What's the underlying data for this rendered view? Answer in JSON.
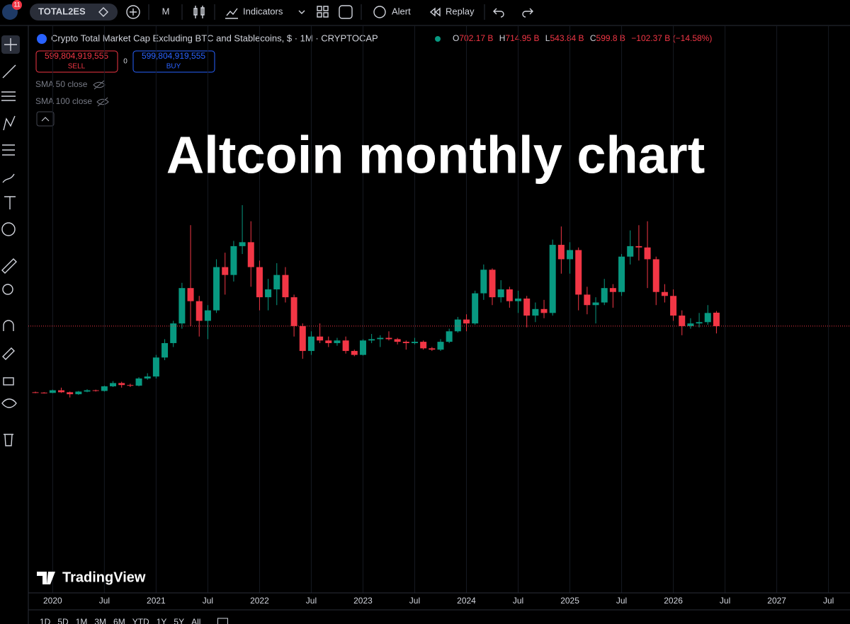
{
  "toolbar": {
    "badge": "11",
    "symbol": "TOTAL2ES",
    "interval": "M",
    "indicators": "Indicators",
    "alert": "Alert",
    "replay": "Replay"
  },
  "legend": {
    "title": "Crypto Total Market Cap Excluding BTC and Stablecoins, $ · 1M · CRYPTOCAP",
    "ohlc": [
      {
        "label": "O",
        "value": "702.17 B"
      },
      {
        "label": "H",
        "value": "714.95 B"
      },
      {
        "label": "L",
        "value": "543.84 B"
      },
      {
        "label": "C",
        "value": "599.8 B"
      }
    ],
    "change": "−102.37 B (−14.58%)",
    "sell_price": "599,804,919,555",
    "sell": "SELL",
    "spread": "0",
    "buy_price": "599,804,919,555",
    "buy": "BUY",
    "studies": [
      "SMA 50 close",
      "SMA 100 close"
    ]
  },
  "overlay_title": "Altcoin monthly chart",
  "watermark": "TradingView",
  "timeframes": [
    "1D",
    "5D",
    "1M",
    "3M",
    "6M",
    "YTD",
    "1Y",
    "5Y",
    "All"
  ],
  "chart_data": {
    "type": "candlestick",
    "x": [
      "2019-11",
      "2019-12",
      "2020-01",
      "2020-02",
      "2020-03",
      "2020-04",
      "2020-05",
      "2020-06",
      "2020-07",
      "2020-08",
      "2020-09",
      "2020-10",
      "2020-11",
      "2020-12",
      "2021-01",
      "2021-02",
      "2021-03",
      "2021-04",
      "2021-05",
      "2021-06",
      "2021-07",
      "2021-08",
      "2021-09",
      "2021-10",
      "2021-11",
      "2021-12",
      "2022-01",
      "2022-02",
      "2022-03",
      "2022-04",
      "2022-05",
      "2022-06",
      "2022-07",
      "2022-08",
      "2022-09",
      "2022-10",
      "2022-11",
      "2022-12",
      "2023-01",
      "2023-02",
      "2023-03",
      "2023-04",
      "2023-05",
      "2023-06",
      "2023-07",
      "2023-08",
      "2023-09",
      "2023-10",
      "2023-11",
      "2023-12",
      "2024-01",
      "2024-02",
      "2024-03",
      "2024-04",
      "2024-05",
      "2024-06",
      "2024-07",
      "2024-08",
      "2024-09",
      "2024-10",
      "2024-11",
      "2024-12",
      "2025-01",
      "2025-02",
      "2025-03",
      "2025-04",
      "2025-05",
      "2025-06",
      "2025-07",
      "2025-08",
      "2025-09",
      "2025-10",
      "2025-11",
      "2025-12",
      "2026-01",
      "2026-02",
      "2026-03",
      "2026-04",
      "2026-05",
      "2026-06"
    ],
    "open": [
      95,
      92,
      90,
      110,
      95,
      80,
      100,
      110,
      105,
      140,
      165,
      150,
      145,
      200,
      215,
      360,
      470,
      620,
      890,
      790,
      640,
      720,
      1050,
      990,
      1210,
      1240,
      1050,
      820,
      880,
      990,
      820,
      600,
      410,
      520,
      490,
      470,
      490,
      410,
      380,
      490,
      500,
      510,
      500,
      480,
      470,
      480,
      430,
      420,
      480,
      560,
      650,
      620,
      850,
      1030,
      820,
      880,
      790,
      810,
      680,
      730,
      700,
      1220,
      1110,
      1180,
      840,
      760,
      780,
      890,
      860,
      1130,
      1210,
      1200,
      1110,
      860,
      830,
      680,
      600,
      620,
      630,
      702.17
    ],
    "high": [
      100,
      96,
      115,
      130,
      100,
      105,
      118,
      115,
      145,
      180,
      175,
      160,
      210,
      240,
      380,
      500,
      640,
      930,
      1370,
      830,
      760,
      1110,
      1160,
      1250,
      1523,
      1400,
      1100,
      960,
      1080,
      1050,
      840,
      620,
      560,
      620,
      520,
      510,
      520,
      420,
      500,
      540,
      530,
      560,
      510,
      490,
      510,
      490,
      440,
      500,
      580,
      670,
      690,
      870,
      1070,
      1040,
      950,
      900,
      870,
      830,
      780,
      800,
      1260,
      1360,
      1240,
      1200,
      900,
      820,
      960,
      920,
      1150,
      1330,
      1370,
      1400,
      1130,
      920,
      880,
      720,
      660,
      700,
      760,
      714.95
    ],
    "low": [
      88,
      85,
      88,
      90,
      55,
      75,
      95,
      100,
      100,
      135,
      130,
      135,
      140,
      190,
      200,
      340,
      440,
      580,
      600,
      520,
      500,
      700,
      840,
      940,
      1150,
      900,
      720,
      720,
      760,
      780,
      520,
      350,
      380,
      470,
      440,
      450,
      390,
      370,
      375,
      470,
      440,
      490,
      460,
      420,
      460,
      420,
      410,
      410,
      470,
      550,
      560,
      610,
      800,
      760,
      780,
      740,
      700,
      590,
      630,
      660,
      680,
      1000,
      1000,
      720,
      690,
      620,
      760,
      740,
      830,
      1070,
      1100,
      890,
      760,
      780,
      640,
      530,
      580,
      590,
      610,
      543.84
    ],
    "close": [
      92,
      90,
      110,
      95,
      80,
      100,
      110,
      105,
      140,
      165,
      150,
      145,
      200,
      215,
      360,
      470,
      620,
      890,
      790,
      640,
      720,
      1050,
      990,
      1210,
      1240,
      1050,
      820,
      880,
      990,
      820,
      600,
      410,
      520,
      490,
      470,
      490,
      410,
      380,
      490,
      500,
      510,
      500,
      480,
      470,
      480,
      430,
      420,
      480,
      560,
      650,
      620,
      850,
      1030,
      820,
      880,
      790,
      810,
      680,
      730,
      700,
      1220,
      1110,
      1180,
      840,
      760,
      780,
      890,
      860,
      1130,
      1210,
      1200,
      1110,
      860,
      830,
      680,
      600,
      620,
      630,
      700,
      599.8
    ],
    "up_color": "#089981",
    "down_color": "#f23645",
    "xticks": [
      {
        "value": "2020-01",
        "label": "2020"
      },
      {
        "value": "2020-07",
        "label": "Jul"
      },
      {
        "value": "2021-01",
        "label": "2021"
      },
      {
        "value": "2021-07",
        "label": "Jul"
      },
      {
        "value": "2022-01",
        "label": "2022"
      },
      {
        "value": "2022-07",
        "label": "Jul"
      },
      {
        "value": "2023-01",
        "label": "2023"
      },
      {
        "value": "2023-07",
        "label": "Jul"
      },
      {
        "value": "2024-01",
        "label": "2024"
      },
      {
        "value": "2024-07",
        "label": "Jul"
      },
      {
        "value": "2025-01",
        "label": "2025"
      },
      {
        "value": "2025-07",
        "label": "Jul"
      },
      {
        "value": "2026-01",
        "label": "2026"
      },
      {
        "value": "2026-07",
        "label": "Jul"
      },
      {
        "value": "2027-01",
        "label": "2027"
      },
      {
        "value": "2027-07",
        "label": "Jul"
      }
    ],
    "ylim": [
      0,
      2000
    ],
    "grid": true,
    "last_price_line": true
  }
}
